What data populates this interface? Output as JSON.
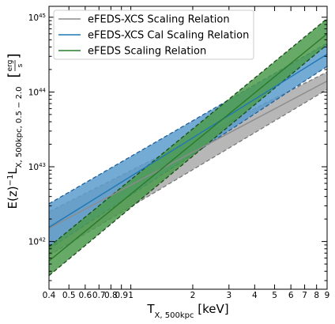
{
  "chart_data": {
    "type": "line",
    "xlabel": "T",
    "xlabel_sub": "X, 500kpc",
    "xlabel_unit": " [keV]",
    "ylabel": "E(z)",
    "ylabel_sup": "−1",
    "ylabel_L": "L",
    "ylabel_sub": "X, 500kpc, 0.5 − 2.0",
    "ylabel_unit_num": "erg",
    "ylabel_unit_den": "s",
    "x_scale": "log",
    "y_scale": "log",
    "xlim": [
      0.4,
      9
    ],
    "ylim": [
      2.3e+41,
      1.4e+45
    ],
    "grid": false,
    "legend_position": "top-left",
    "x_ticks": [
      {
        "value": 0.4,
        "label": "0.4"
      },
      {
        "value": 0.5,
        "label": "0.5"
      },
      {
        "value": 0.6,
        "label": "0.6"
      },
      {
        "value": 0.7,
        "label": "0.7"
      },
      {
        "value": 0.8,
        "label": "0.8"
      },
      {
        "value": 0.9,
        "label": "0.9"
      },
      {
        "value": 1,
        "label": "1"
      },
      {
        "value": 2,
        "label": "2"
      },
      {
        "value": 3,
        "label": "3"
      },
      {
        "value": 4,
        "label": "4"
      },
      {
        "value": 5,
        "label": "5"
      },
      {
        "value": 6,
        "label": "6"
      },
      {
        "value": 7,
        "label": "7"
      },
      {
        "value": 8,
        "label": "8"
      },
      {
        "value": 9,
        "label": "9"
      }
    ],
    "y_ticks": [
      {
        "value": 1e+42,
        "mantissa": "10",
        "exponent": "42"
      },
      {
        "value": 1e+43,
        "mantissa": "10",
        "exponent": "43"
      },
      {
        "value": 1e+44,
        "mantissa": "10",
        "exponent": "44"
      },
      {
        "value": 1e+45,
        "mantissa": "10",
        "exponent": "45"
      }
    ],
    "x": [
      0.4,
      9
    ],
    "series": [
      {
        "name": "eFEDS-XCS Scaling Relation",
        "color": "#8c8c8c",
        "band_color": "#aaaaaa",
        "band_edge_color": "#7a7a7a",
        "y": [
          1.5e+42,
          1.4e+44
        ],
        "band_lower": [
          6.5e+41,
          1.08e+44
        ],
        "band_upper": [
          2.5e+42,
          1.85e+44
        ]
      },
      {
        "name": "eFEDS-XCS Cal Scaling Relation",
        "color": "#1f77b4",
        "band_color": "#5b9ccd",
        "band_edge_color": "#1f5f9a",
        "y": [
          1.55e+42,
          3.2e+44
        ],
        "band_lower": [
          8e+41,
          2.2e+44
        ],
        "band_upper": [
          3.2e+42,
          4.5e+44
        ]
      },
      {
        "name": "eFEDS Scaling Relation",
        "color": "#2b7a2b",
        "band_color": "#4c9a4c",
        "band_edge_color": "#1a4d1a",
        "y": [
          5.5e+41,
          6e+44
        ],
        "band_lower": [
          3.5e+41,
          4.3e+44
        ],
        "band_upper": [
          8.5e+41,
          9.6e+44
        ]
      }
    ]
  }
}
